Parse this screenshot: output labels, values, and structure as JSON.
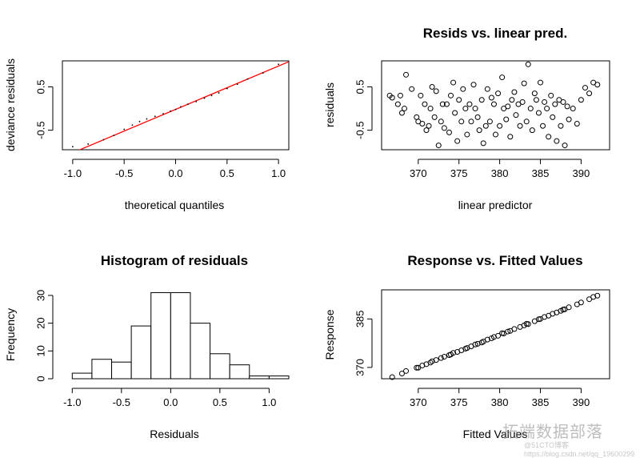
{
  "chart_data": [
    {
      "type": "line",
      "title": "",
      "xlabel": "theoretical quantiles",
      "ylabel": "deviance residuals",
      "xlim": [
        -1.1,
        1.1
      ],
      "ylim": [
        -0.95,
        1.1
      ],
      "xticks": [
        "-1.0",
        "-0.5",
        "0.0",
        "0.5",
        "1.0"
      ],
      "yticks": [
        "-0.5",
        "0.5"
      ],
      "reference_line": {
        "x": [
          -1.1,
          1.1
        ],
        "y": [
          -1.12,
          1.08
        ],
        "color": "#ff0000"
      },
      "series": [
        {
          "name": "qq points",
          "x": [
            -1.0,
            -0.85,
            -0.7,
            -0.6,
            -0.5,
            -0.42,
            -0.35,
            -0.28,
            -0.2,
            -0.12,
            -0.05,
            0.0,
            0.05,
            0.12,
            0.2,
            0.28,
            0.35,
            0.42,
            0.5,
            0.6,
            0.7,
            0.85,
            1.0
          ],
          "y": [
            -0.88,
            -0.82,
            -0.72,
            -0.62,
            -0.48,
            -0.38,
            -0.3,
            -0.24,
            -0.18,
            -0.12,
            -0.06,
            -0.02,
            0.04,
            0.1,
            0.16,
            0.24,
            0.3,
            0.36,
            0.46,
            0.56,
            0.68,
            0.82,
            1.02
          ]
        }
      ]
    },
    {
      "type": "scatter",
      "title": "Resids vs. linear pred.",
      "xlabel": "linear predictor",
      "ylabel": "residuals",
      "xlim": [
        365.5,
        393.5
      ],
      "ylim": [
        -0.95,
        1.1
      ],
      "xticks": [
        "370",
        "375",
        "380",
        "385",
        "390"
      ],
      "yticks": [
        "-0.5",
        "0.5"
      ],
      "x": [
        366.5,
        366.8,
        367.5,
        367.8,
        368.0,
        368.3,
        368.5,
        369.2,
        369.8,
        370.0,
        370.3,
        370.5,
        370.8,
        371.0,
        371.3,
        371.5,
        371.7,
        372.0,
        372.2,
        372.5,
        372.8,
        373.0,
        373.2,
        373.5,
        373.8,
        374.0,
        374.3,
        374.5,
        374.8,
        375.0,
        375.3,
        375.5,
        375.8,
        376.0,
        376.3,
        376.5,
        376.8,
        377.0,
        377.3,
        377.5,
        377.8,
        378.0,
        378.3,
        378.5,
        378.8,
        379.0,
        379.3,
        379.5,
        379.8,
        380.0,
        380.3,
        380.5,
        380.8,
        381.0,
        381.3,
        381.5,
        381.8,
        382.0,
        382.3,
        382.5,
        382.8,
        383.0,
        383.3,
        383.5,
        383.8,
        384.0,
        384.3,
        384.5,
        384.8,
        385.0,
        385.3,
        385.5,
        385.8,
        386.0,
        386.3,
        386.5,
        386.8,
        387.0,
        387.3,
        387.5,
        387.8,
        388.0,
        388.3,
        388.5,
        389.0,
        389.5,
        390.0,
        390.5,
        391.0,
        391.5,
        392.0
      ],
      "y": [
        0.3,
        0.25,
        0.1,
        0.3,
        -0.1,
        0.0,
        0.78,
        0.45,
        -0.2,
        -0.3,
        0.3,
        -0.35,
        0.1,
        -0.5,
        -0.4,
        0.0,
        0.5,
        -0.2,
        0.4,
        -0.85,
        -0.3,
        0.1,
        -0.45,
        0.1,
        -0.55,
        0.3,
        0.6,
        -0.1,
        -0.75,
        0.2,
        -0.3,
        0.45,
        0.0,
        -0.6,
        0.1,
        -0.3,
        0.55,
        0.0,
        -0.2,
        -0.5,
        0.2,
        -0.8,
        -0.4,
        0.45,
        -0.3,
        0.25,
        0.1,
        -0.6,
        0.35,
        -0.4,
        0.72,
        0.0,
        -0.25,
        0.05,
        -0.65,
        0.2,
        0.38,
        -0.15,
        0.1,
        -0.4,
        0.15,
        0.58,
        -0.3,
        1.02,
        0.0,
        -0.5,
        0.35,
        0.2,
        -0.1,
        0.6,
        -0.4,
        0.15,
        0.0,
        -0.65,
        0.3,
        -0.2,
        0.1,
        -0.75,
        0.2,
        -0.4,
        0.15,
        -0.85,
        0.05,
        -0.25,
        0.0,
        -0.35,
        0.2,
        0.48,
        0.35,
        0.6,
        0.55
      ]
    },
    {
      "type": "bar",
      "title": "Histogram of residuals",
      "xlabel": "Residuals",
      "ylabel": "Frequency",
      "xlim": [
        -1.1,
        1.2
      ],
      "ylim": [
        0,
        32
      ],
      "xticks": [
        "-1.0",
        "-0.5",
        "0.0",
        "0.5",
        "1.0"
      ],
      "yticks": [
        "0",
        "10",
        "20",
        "30"
      ],
      "bins": [
        [
          -1.0,
          -0.8
        ],
        [
          -0.8,
          -0.6
        ],
        [
          -0.6,
          -0.4
        ],
        [
          -0.4,
          -0.2
        ],
        [
          -0.2,
          0.0
        ],
        [
          0.0,
          0.2
        ],
        [
          0.2,
          0.4
        ],
        [
          0.4,
          0.6
        ],
        [
          0.6,
          0.8
        ],
        [
          0.8,
          1.0
        ],
        [
          1.0,
          1.2
        ]
      ],
      "values": [
        2,
        7,
        6,
        19,
        31,
        31,
        20,
        9,
        5,
        1,
        1
      ]
    },
    {
      "type": "scatter",
      "title": "Response vs. Fitted Values",
      "xlabel": "Fitted Values",
      "ylabel": "Response",
      "xlim": [
        365.5,
        393.5
      ],
      "ylim": [
        366.5,
        394
      ],
      "xticks": [
        "370",
        "375",
        "380",
        "385",
        "390"
      ],
      "yticks": [
        "370",
        "385"
      ],
      "x": [
        366.8,
        368.0,
        368.5,
        369.8,
        370.0,
        370.5,
        371.0,
        371.5,
        371.7,
        372.2,
        372.8,
        373.2,
        373.8,
        374.0,
        374.3,
        374.8,
        375.3,
        375.8,
        376.0,
        376.5,
        377.0,
        377.3,
        377.8,
        378.0,
        378.5,
        379.0,
        379.3,
        379.8,
        380.3,
        380.5,
        381.0,
        381.3,
        381.8,
        382.5,
        383.0,
        383.3,
        383.5,
        384.3,
        384.8,
        385.0,
        385.5,
        386.0,
        386.5,
        387.0,
        387.5,
        387.8,
        388.0,
        388.5,
        389.5,
        390.0,
        391.0,
        391.5,
        392.0
      ],
      "y": [
        367.0,
        368.1,
        368.9,
        369.9,
        369.9,
        370.6,
        371.0,
        371.5,
        371.9,
        372.3,
        372.9,
        373.3,
        373.8,
        374.0,
        374.5,
        374.8,
        375.3,
        375.8,
        376.0,
        376.5,
        377.1,
        377.3,
        377.7,
        378.0,
        378.6,
        379.0,
        379.4,
        379.8,
        380.6,
        380.5,
        381.1,
        381.3,
        381.9,
        382.5,
        383.0,
        383.5,
        383.4,
        384.3,
        384.9,
        385.0,
        385.6,
        386.0,
        386.6,
        387.0,
        387.5,
        387.9,
        388.0,
        388.6,
        389.5,
        390.1,
        391.1,
        391.8,
        392.2
      ]
    }
  ],
  "watermark": {
    "line1": "拓端数据部落",
    "line2": "@51CTO博客 https://blog.csdn.net/qq_19600299"
  }
}
